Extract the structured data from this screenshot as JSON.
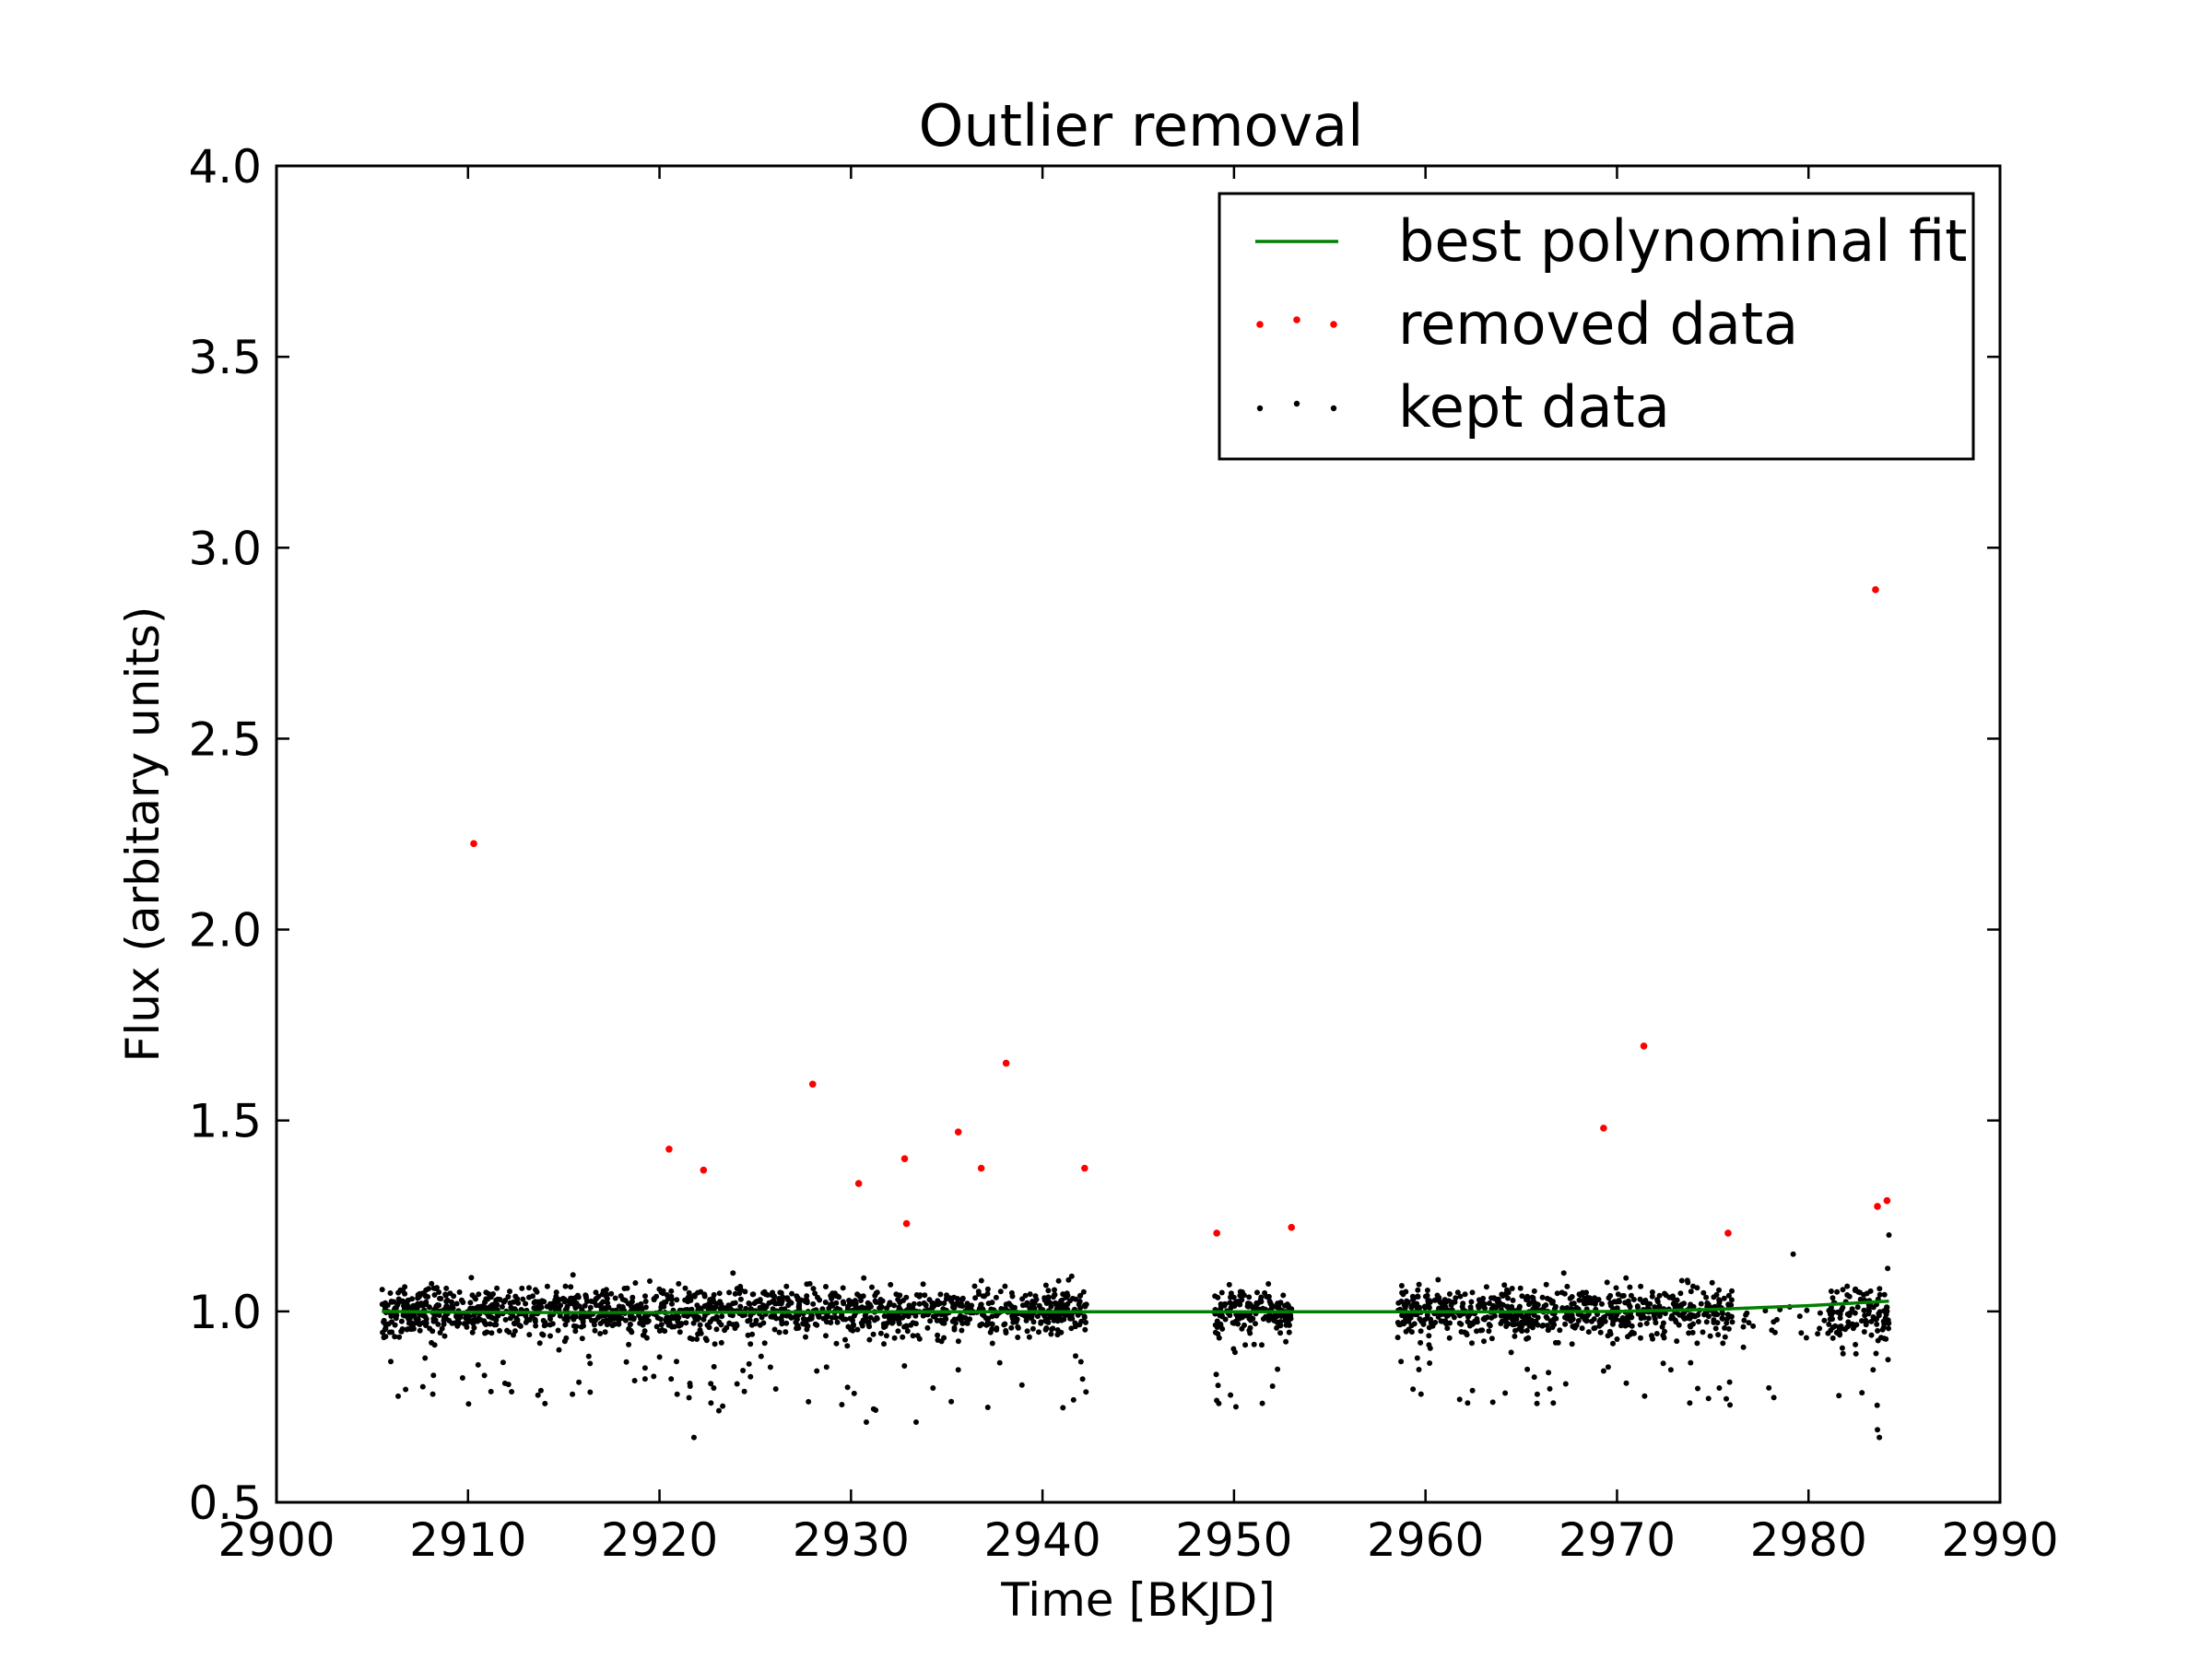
{
  "chart_data": {
    "type": "scatter",
    "title": "Outlier removal",
    "xlabel": "Time [BKJD]",
    "ylabel": "Flux (arbitary units)",
    "xlim": [
      2900,
      2990
    ],
    "ylim": [
      0.5,
      4.0
    ],
    "x_ticks": [
      2900,
      2910,
      2920,
      2930,
      2940,
      2950,
      2960,
      2970,
      2980,
      2990
    ],
    "x_tick_labels": [
      "2900",
      "2910",
      "2920",
      "2930",
      "2940",
      "2950",
      "2960",
      "2970",
      "2980",
      "2990"
    ],
    "y_ticks": [
      0.5,
      1.0,
      1.5,
      2.0,
      2.5,
      3.0,
      3.5,
      4.0
    ],
    "y_tick_labels": [
      "0.5",
      "1.0",
      "1.5",
      "2.0",
      "2.5",
      "3.0",
      "3.5",
      "4.0"
    ],
    "grid": false,
    "legend_position": "top-right",
    "colors": {
      "fit": "#008000",
      "removed": "#ff0000",
      "kept": "#000000"
    },
    "series": [
      {
        "name": "best polynominal fit",
        "kind": "line",
        "x": [
          2905.5,
          2910,
          2915,
          2920,
          2925,
          2930,
          2935,
          2940,
          2942.3,
          2949,
          2953,
          2958.5,
          2965,
          2970,
          2975,
          2980,
          2984.2
        ],
        "y": [
          1.0,
          0.998,
          0.997,
          0.997,
          0.998,
          0.999,
          0.999,
          0.999,
          0.999,
          0.999,
          0.999,
          0.999,
          0.999,
          1.0,
          1.005,
          1.015,
          1.027
        ]
      },
      {
        "name": "removed data",
        "kind": "points",
        "x": [
          2910.3,
          2920.5,
          2922.3,
          2928.0,
          2930.4,
          2932.8,
          2932.9,
          2935.6,
          2936.8,
          2938.1,
          2942.2,
          2949.1,
          2953.0,
          2969.3,
          2971.4,
          2975.8,
          2983.5,
          2983.6,
          2984.1
        ],
        "y": [
          2.225,
          1.425,
          1.37,
          1.595,
          1.335,
          1.4,
          1.23,
          1.47,
          1.375,
          1.65,
          1.375,
          1.205,
          1.22,
          1.48,
          1.695,
          1.205,
          2.89,
          1.275,
          1.29
        ]
      },
      {
        "name": "kept data",
        "kind": "points",
        "segments": [
          {
            "x_range": [
              2905.5,
              2942.3
            ],
            "count": 1500,
            "center": 1.0,
            "spread": 0.045
          },
          {
            "x_range": [
              2949.0,
              2953.0
            ],
            "count": 170,
            "center": 1.0,
            "spread": 0.04
          },
          {
            "x_range": [
              2958.5,
              2976.0
            ],
            "count": 700,
            "center": 1.0,
            "spread": 0.045
          },
          {
            "x_range": [
              2976.0,
              2981.0
            ],
            "count": 25,
            "center": 0.97,
            "spread": 0.07
          },
          {
            "x_range": [
              2981.0,
              2984.2
            ],
            "count": 120,
            "center": 0.99,
            "spread": 0.06
          }
        ],
        "extremes": {
          "x": [
            2921.8,
            2923.1,
            2930.8,
            2933.4,
            2950.1,
            2962.2,
            2973.8,
            2975.9,
            2983.6,
            2983.7,
            2984.2,
            2979.2,
            2911.2
          ],
          "y": [
            0.67,
            0.74,
            0.71,
            0.71,
            0.75,
            0.76,
            0.76,
            0.755,
            0.69,
            0.67,
            1.2,
            1.15,
            0.79
          ]
        }
      }
    ]
  }
}
